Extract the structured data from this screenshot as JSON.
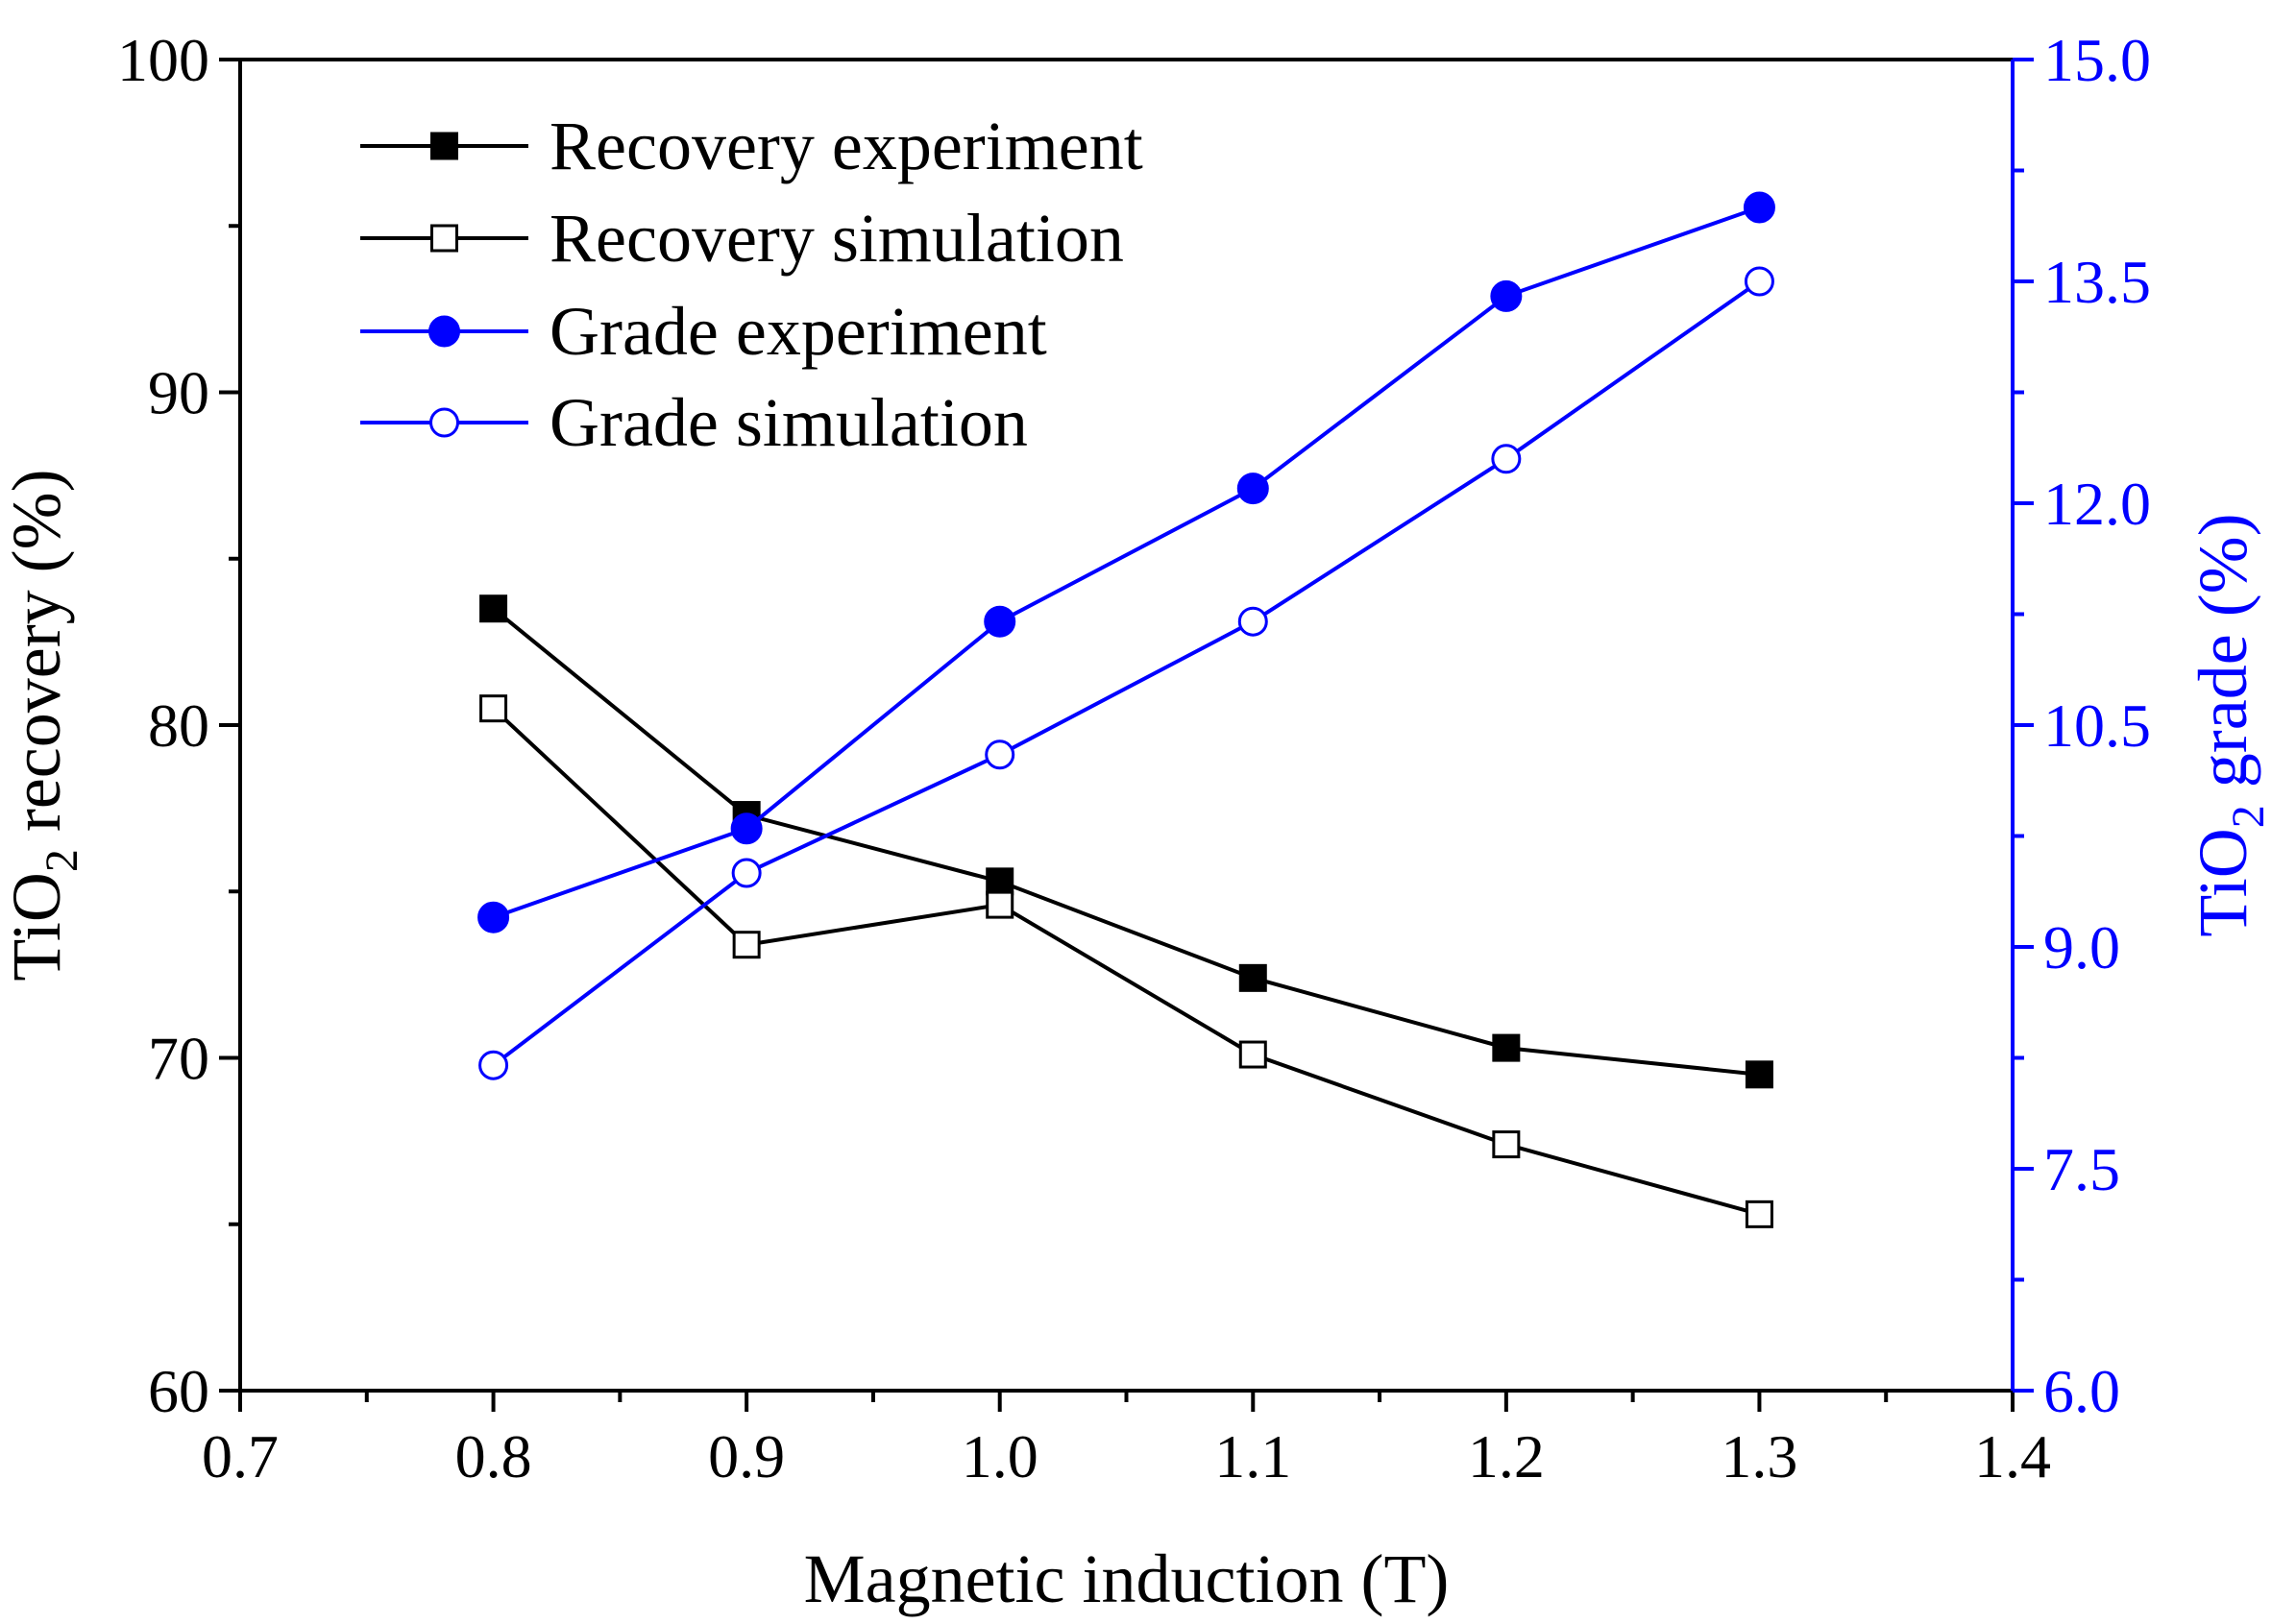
{
  "chart_data": {
    "type": "line",
    "title": "",
    "xlabel": "Magnetic induction (T)",
    "ylabel": {
      "prefix": "TiO",
      "sub": "2",
      "suffix": " recovery (%)"
    },
    "y2label": {
      "prefix": "TiO",
      "sub": "2",
      "suffix": " grade (%)"
    },
    "xlim": [
      0.7,
      1.4
    ],
    "ylim": [
      60,
      100
    ],
    "y2lim": [
      6.0,
      15.0
    ],
    "x_ticks": [
      "0.7",
      "0.8",
      "0.9",
      "1.0",
      "1.1",
      "1.2",
      "1.3",
      "1.4"
    ],
    "y_ticks": [
      "60",
      "70",
      "80",
      "90",
      "100"
    ],
    "y2_ticks": [
      "6.0",
      "7.5",
      "9.0",
      "10.5",
      "12.0",
      "13.5",
      "15.0"
    ],
    "x": [
      0.8,
      0.9,
      1.0,
      1.1,
      1.2,
      1.3
    ],
    "legend_position": "top-left",
    "series": [
      {
        "name": "Recovery experiment",
        "axis": "left",
        "color": "#000000",
        "marker": "square-filled",
        "values": [
          83.5,
          77.3,
          75.3,
          72.4,
          70.3,
          69.5
        ]
      },
      {
        "name": "Recovery simulation",
        "axis": "left",
        "color": "#000000",
        "marker": "square-open",
        "values": [
          80.5,
          73.4,
          74.6,
          70.1,
          67.4,
          65.3
        ]
      },
      {
        "name": "Grade experiment",
        "axis": "right",
        "color": "#0000ff",
        "marker": "circle-filled",
        "values": [
          9.2,
          9.8,
          11.2,
          12.1,
          13.4,
          14.0
        ]
      },
      {
        "name": "Grade simulation",
        "axis": "right",
        "color": "#0000ff",
        "marker": "circle-open",
        "values": [
          8.2,
          9.5,
          10.3,
          11.2,
          12.3,
          13.5
        ]
      }
    ]
  }
}
